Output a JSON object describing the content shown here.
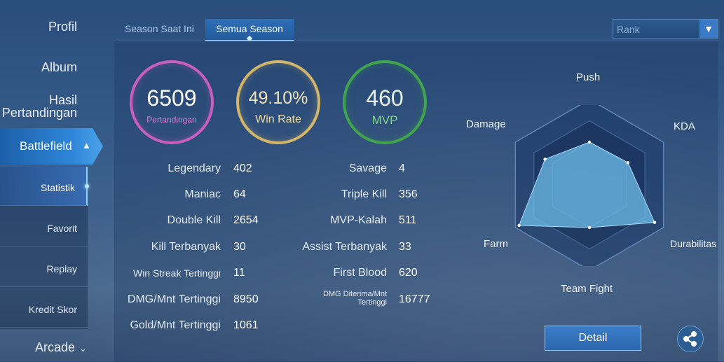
{
  "sidebar": {
    "profil": "Profil",
    "album": "Album",
    "hasil_line1": "Hasil",
    "hasil_line2": "Pertandingan",
    "battlefield": "Battlefield",
    "sub_items": [
      "Statistik",
      "Favorit",
      "Replay",
      "Kredit Skor"
    ],
    "arcade": "Arcade"
  },
  "tabs": [
    "Season Saat Ini",
    "Semua Season"
  ],
  "dropdown": {
    "value": "Rank"
  },
  "summary": [
    {
      "value": "6509",
      "label": "Pertandingan",
      "color": "#c95dc0"
    },
    {
      "value": "49.10%",
      "label": "Win Rate",
      "color": "#d3b56a"
    },
    {
      "value": "460",
      "label": "MVP",
      "color": "#3fa44c"
    }
  ],
  "stats_left": [
    {
      "label": "Legendary",
      "value": "402"
    },
    {
      "label": "Maniac",
      "value": "64"
    },
    {
      "label": "Double Kill",
      "value": "2654"
    },
    {
      "label": "Kill Terbanyak",
      "value": "30"
    },
    {
      "label": "Win Streak Tertinggi",
      "value": "11"
    },
    {
      "label": "DMG/Mnt Tertinggi",
      "value": "8950"
    },
    {
      "label": "Gold/Mnt Tertinggi",
      "value": "1061"
    }
  ],
  "stats_right": [
    {
      "label": "Savage",
      "value": "4"
    },
    {
      "label": "Triple Kill",
      "value": "356"
    },
    {
      "label": "MVP-Kalah",
      "value": "511"
    },
    {
      "label": "Assist Terbanyak",
      "value": "33"
    },
    {
      "label": "First Blood",
      "value": "620"
    },
    {
      "label": "DMG Diterima/Mnt Tertinggi",
      "value": "16777"
    }
  ],
  "radar": {
    "labels": [
      "Push",
      "KDA",
      "Durabilitas",
      "Team Fight",
      "Farm",
      "Damage"
    ],
    "values": [
      0.5,
      0.52,
      0.88,
      0.5,
      0.95,
      0.6
    ]
  },
  "detail_button": "Detail",
  "icons": {
    "share": "share-icon",
    "chevron_up": "chevron-up-icon",
    "chevron_down": "chevron-down-icon"
  }
}
